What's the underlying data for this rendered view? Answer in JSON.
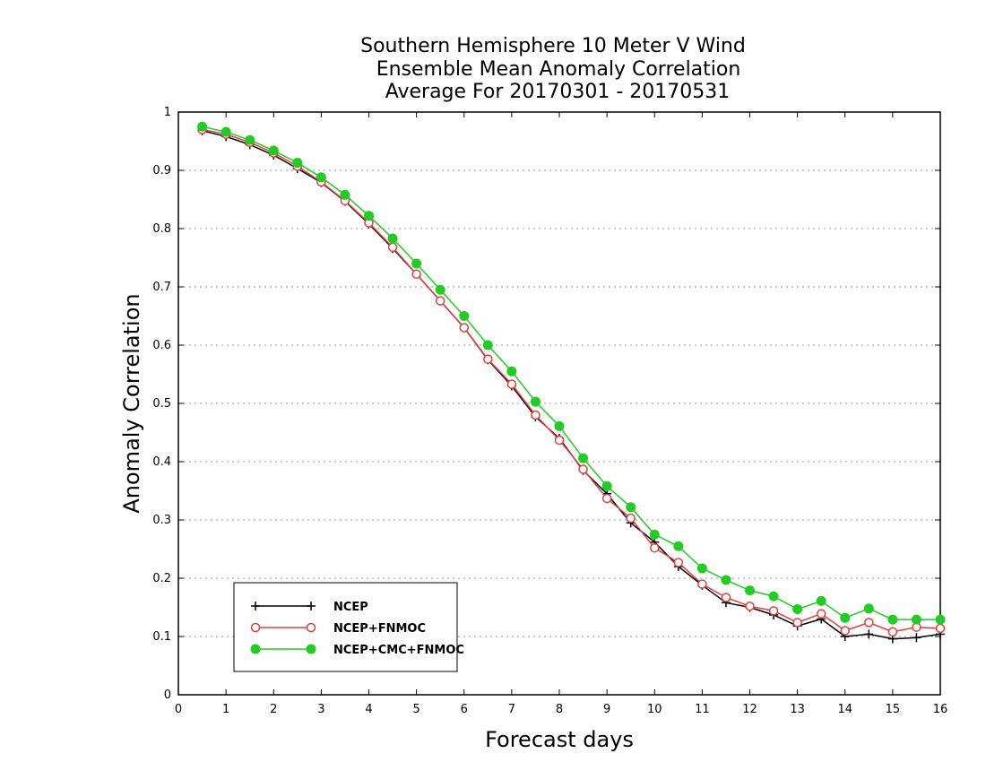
{
  "chart_data": {
    "type": "line",
    "title_lines": [
      "Southern Hemisphere 10 Meter V Wind",
      "Ensemble Mean Anomaly Correlation",
      "Average For 20170301 - 20170531"
    ],
    "xlabel": "Forecast days",
    "ylabel": "Anomaly Correlation",
    "xlim": [
      0,
      16
    ],
    "ylim": [
      0,
      1
    ],
    "x_ticks": [
      "0",
      "1",
      "2",
      "3",
      "4",
      "5",
      "6",
      "7",
      "8",
      "9",
      "10",
      "11",
      "12",
      "13",
      "14",
      "15",
      "16"
    ],
    "y_ticks": [
      "0",
      "0.1",
      "0.2",
      "0.3",
      "0.4",
      "0.5",
      "0.6",
      "0.7",
      "0.8",
      "0.9",
      "1"
    ],
    "grid": "horizontal dotted",
    "legend_position": "bottom-left",
    "x": [
      0.5,
      1,
      1.5,
      2,
      2.5,
      3,
      3.5,
      4,
      4.5,
      5,
      5.5,
      6,
      6.5,
      7,
      7.5,
      8,
      8.5,
      9,
      9.5,
      10,
      10.5,
      11,
      11.5,
      12,
      12.5,
      13,
      13.5,
      14,
      14.5,
      15,
      15.5,
      16
    ],
    "series": [
      {
        "name": "NCEP",
        "color": "#000000",
        "marker": "plus",
        "values": [
          0.968,
          0.958,
          0.944,
          0.926,
          0.903,
          0.879,
          0.847,
          0.808,
          0.766,
          0.722,
          0.676,
          0.63,
          0.575,
          0.53,
          0.477,
          0.44,
          0.385,
          0.345,
          0.295,
          0.262,
          0.22,
          0.188,
          0.158,
          0.15,
          0.137,
          0.118,
          0.13,
          0.1,
          0.104,
          0.096,
          0.098,
          0.104
        ]
      },
      {
        "name": "NCEP+FNMOC",
        "color": "#e04040",
        "marker": "open-circle",
        "values": [
          0.97,
          0.962,
          0.948,
          0.93,
          0.907,
          0.88,
          0.848,
          0.81,
          0.768,
          0.722,
          0.676,
          0.63,
          0.576,
          0.533,
          0.48,
          0.437,
          0.387,
          0.337,
          0.303,
          0.252,
          0.227,
          0.19,
          0.167,
          0.152,
          0.144,
          0.124,
          0.139,
          0.11,
          0.124,
          0.108,
          0.116,
          0.114
        ]
      },
      {
        "name": "NCEP+CMC+FNMOC",
        "color": "#22cc22",
        "marker": "filled-circle",
        "values": [
          0.975,
          0.966,
          0.952,
          0.934,
          0.913,
          0.888,
          0.858,
          0.822,
          0.783,
          0.74,
          0.695,
          0.65,
          0.6,
          0.555,
          0.503,
          0.461,
          0.406,
          0.358,
          0.322,
          0.275,
          0.255,
          0.217,
          0.197,
          0.179,
          0.169,
          0.147,
          0.161,
          0.132,
          0.148,
          0.129,
          0.129,
          0.129
        ]
      }
    ]
  }
}
